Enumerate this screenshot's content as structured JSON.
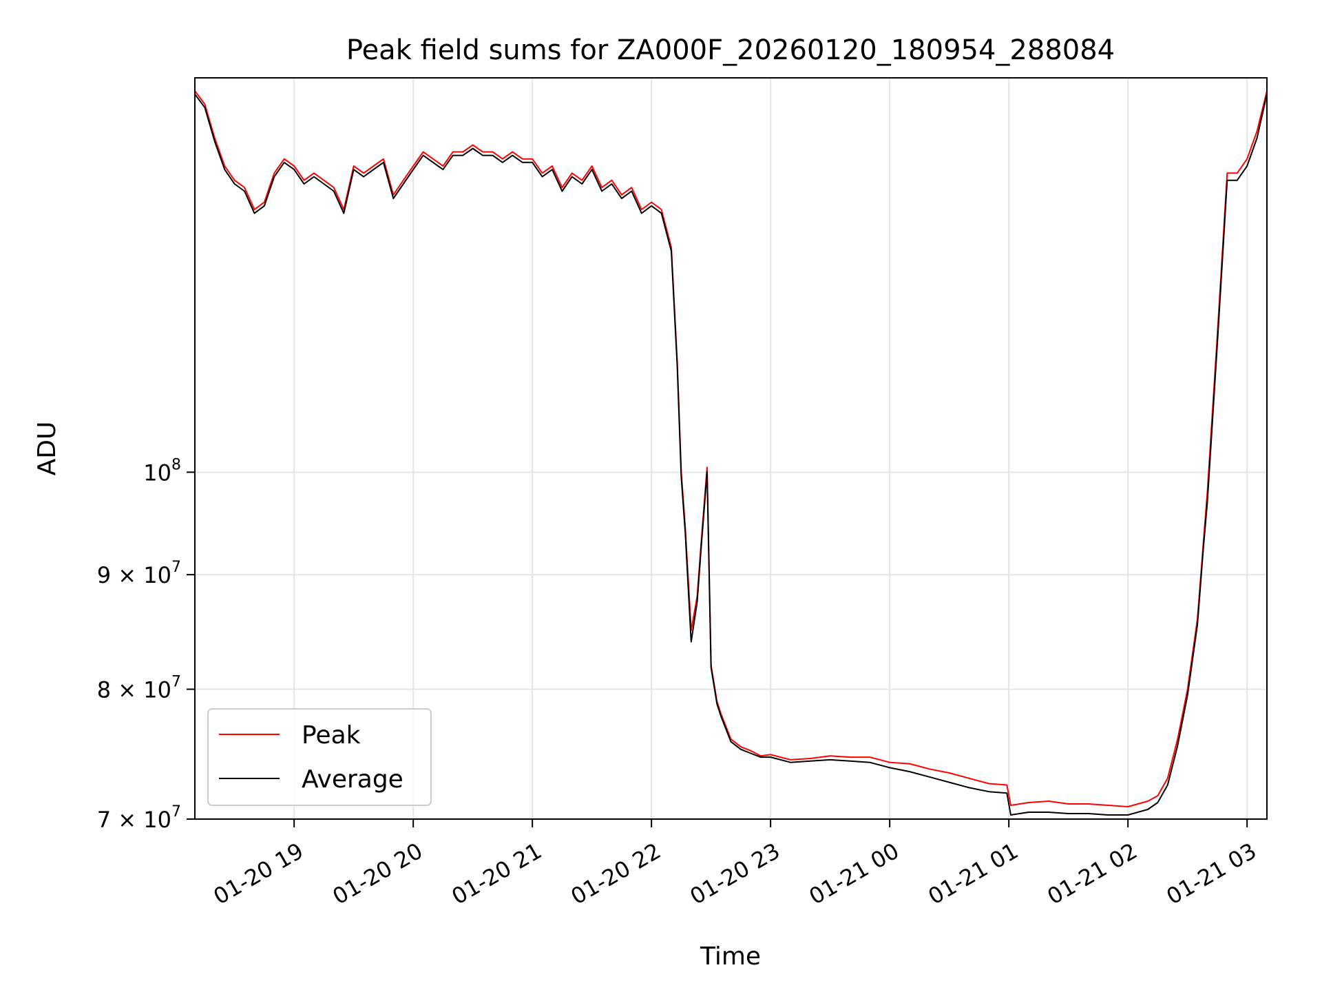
{
  "chart_data": {
    "type": "line",
    "title": "Peak field sums for ZA000F_20260120_180954_288084",
    "xlabel": "Time",
    "ylabel": "ADU",
    "yscale": "log",
    "ylim": [
      70000000,
      150000000
    ],
    "xlim": [
      "2026-01-20 18:10",
      "2026-01-21 03:10"
    ],
    "grid": true,
    "legend_position": "lower left",
    "colors": {
      "Peak": "#ff0000",
      "Average": "#000000"
    },
    "x_ticks": [
      {
        "value": "2026-01-20 19:00",
        "label": "01-20 19"
      },
      {
        "value": "2026-01-20 20:00",
        "label": "01-20 20"
      },
      {
        "value": "2026-01-20 21:00",
        "label": "01-20 21"
      },
      {
        "value": "2026-01-20 22:00",
        "label": "01-20 22"
      },
      {
        "value": "2026-01-20 23:00",
        "label": "01-20 23"
      },
      {
        "value": "2026-01-21 00:00",
        "label": "01-21 00"
      },
      {
        "value": "2026-01-21 01:00",
        "label": "01-21 01"
      },
      {
        "value": "2026-01-21 02:00",
        "label": "01-21 02"
      },
      {
        "value": "2026-01-21 03:00",
        "label": "01-21 03"
      }
    ],
    "y_ticks": [
      {
        "value": 70000000,
        "base": "7 × 10",
        "exp": "7"
      },
      {
        "value": 80000000,
        "base": "8 × 10",
        "exp": "7"
      },
      {
        "value": 90000000,
        "base": "9 × 10",
        "exp": "7"
      },
      {
        "value": 100000000,
        "base": "10",
        "exp": "8"
      }
    ],
    "series": [
      {
        "name": "Peak",
        "x": [
          "2026-01-20 18:10",
          "2026-01-20 18:15",
          "2026-01-20 18:20",
          "2026-01-20 18:25",
          "2026-01-20 18:30",
          "2026-01-20 18:35",
          "2026-01-20 18:40",
          "2026-01-20 18:45",
          "2026-01-20 18:50",
          "2026-01-20 18:55",
          "2026-01-20 19:00",
          "2026-01-20 19:05",
          "2026-01-20 19:10",
          "2026-01-20 19:15",
          "2026-01-20 19:20",
          "2026-01-20 19:25",
          "2026-01-20 19:30",
          "2026-01-20 19:35",
          "2026-01-20 19:40",
          "2026-01-20 19:45",
          "2026-01-20 19:50",
          "2026-01-20 19:55",
          "2026-01-20 20:00",
          "2026-01-20 20:05",
          "2026-01-20 20:10",
          "2026-01-20 20:15",
          "2026-01-20 20:20",
          "2026-01-20 20:25",
          "2026-01-20 20:30",
          "2026-01-20 20:35",
          "2026-01-20 20:40",
          "2026-01-20 20:45",
          "2026-01-20 20:50",
          "2026-01-20 20:55",
          "2026-01-20 21:00",
          "2026-01-20 21:05",
          "2026-01-20 21:10",
          "2026-01-20 21:15",
          "2026-01-20 21:20",
          "2026-01-20 21:25",
          "2026-01-20 21:30",
          "2026-01-20 21:35",
          "2026-01-20 21:40",
          "2026-01-20 21:45",
          "2026-01-20 21:50",
          "2026-01-20 21:55",
          "2026-01-20 22:00",
          "2026-01-20 22:05",
          "2026-01-20 22:10",
          "2026-01-20 22:13",
          "2026-01-20 22:15",
          "2026-01-20 22:17",
          "2026-01-20 22:20",
          "2026-01-20 22:23",
          "2026-01-20 22:25",
          "2026-01-20 22:28",
          "2026-01-20 22:30",
          "2026-01-20 22:33",
          "2026-01-20 22:35",
          "2026-01-20 22:40",
          "2026-01-20 22:45",
          "2026-01-20 22:50",
          "2026-01-20 22:55",
          "2026-01-20 23:00",
          "2026-01-20 23:10",
          "2026-01-20 23:20",
          "2026-01-20 23:30",
          "2026-01-20 23:40",
          "2026-01-20 23:50",
          "2026-01-21 00:00",
          "2026-01-21 00:10",
          "2026-01-21 00:20",
          "2026-01-21 00:30",
          "2026-01-21 00:40",
          "2026-01-21 00:50",
          "2026-01-21 00:59",
          "2026-01-21 01:01",
          "2026-01-21 01:10",
          "2026-01-21 01:20",
          "2026-01-21 01:30",
          "2026-01-21 01:40",
          "2026-01-21 01:50",
          "2026-01-21 02:00",
          "2026-01-21 02:10",
          "2026-01-21 02:15",
          "2026-01-21 02:20",
          "2026-01-21 02:25",
          "2026-01-21 02:30",
          "2026-01-21 02:35",
          "2026-01-21 02:38",
          "2026-01-21 02:40",
          "2026-01-21 02:45",
          "2026-01-21 02:50",
          "2026-01-21 02:55",
          "2026-01-21 03:00",
          "2026-01-21 03:05",
          "2026-01-21 03:10"
        ],
        "values": [
          148000000,
          146000000,
          141000000,
          137000000,
          135000000,
          134000000,
          131000000,
          132000000,
          136000000,
          138000000,
          137000000,
          135000000,
          136000000,
          135000000,
          134000000,
          131000000,
          137000000,
          136000000,
          137000000,
          138000000,
          133000000,
          135000000,
          137000000,
          139000000,
          138000000,
          137000000,
          139000000,
          139000000,
          140000000,
          139000000,
          139000000,
          138000000,
          139000000,
          138000000,
          138000000,
          136000000,
          137000000,
          134000000,
          136000000,
          135000000,
          137000000,
          134000000,
          135000000,
          133000000,
          134000000,
          131000000,
          132000000,
          131000000,
          126000000,
          112000000,
          100000000,
          94500000,
          85000000,
          88000000,
          93000000,
          100500000,
          82000000,
          79000000,
          78000000,
          76000000,
          75400000,
          75100000,
          74700000,
          74800000,
          74400000,
          74500000,
          74700000,
          74600000,
          74600000,
          74200000,
          74100000,
          73700000,
          73400000,
          73000000,
          72600000,
          72500000,
          71000000,
          71200000,
          71300000,
          71100000,
          71100000,
          71000000,
          70900000,
          71300000,
          71700000,
          73000000,
          76000000,
          80000000,
          86000000,
          93000000,
          98000000,
          115000000,
          136000000,
          136000000,
          138000000,
          142000000,
          148000000
        ]
      },
      {
        "name": "Average",
        "x": [
          "2026-01-20 18:10",
          "2026-01-20 18:15",
          "2026-01-20 18:20",
          "2026-01-20 18:25",
          "2026-01-20 18:30",
          "2026-01-20 18:35",
          "2026-01-20 18:40",
          "2026-01-20 18:45",
          "2026-01-20 18:50",
          "2026-01-20 18:55",
          "2026-01-20 19:00",
          "2026-01-20 19:05",
          "2026-01-20 19:10",
          "2026-01-20 19:15",
          "2026-01-20 19:20",
          "2026-01-20 19:25",
          "2026-01-20 19:30",
          "2026-01-20 19:35",
          "2026-01-20 19:40",
          "2026-01-20 19:45",
          "2026-01-20 19:50",
          "2026-01-20 19:55",
          "2026-01-20 20:00",
          "2026-01-20 20:05",
          "2026-01-20 20:10",
          "2026-01-20 20:15",
          "2026-01-20 20:20",
          "2026-01-20 20:25",
          "2026-01-20 20:30",
          "2026-01-20 20:35",
          "2026-01-20 20:40",
          "2026-01-20 20:45",
          "2026-01-20 20:50",
          "2026-01-20 20:55",
          "2026-01-20 21:00",
          "2026-01-20 21:05",
          "2026-01-20 21:10",
          "2026-01-20 21:15",
          "2026-01-20 21:20",
          "2026-01-20 21:25",
          "2026-01-20 21:30",
          "2026-01-20 21:35",
          "2026-01-20 21:40",
          "2026-01-20 21:45",
          "2026-01-20 21:50",
          "2026-01-20 21:55",
          "2026-01-20 22:00",
          "2026-01-20 22:05",
          "2026-01-20 22:10",
          "2026-01-20 22:13",
          "2026-01-20 22:15",
          "2026-01-20 22:17",
          "2026-01-20 22:20",
          "2026-01-20 22:23",
          "2026-01-20 22:25",
          "2026-01-20 22:28",
          "2026-01-20 22:30",
          "2026-01-20 22:33",
          "2026-01-20 22:35",
          "2026-01-20 22:40",
          "2026-01-20 22:45",
          "2026-01-20 22:50",
          "2026-01-20 22:55",
          "2026-01-20 23:00",
          "2026-01-20 23:10",
          "2026-01-20 23:20",
          "2026-01-20 23:30",
          "2026-01-20 23:40",
          "2026-01-20 23:50",
          "2026-01-21 00:00",
          "2026-01-21 00:10",
          "2026-01-21 00:20",
          "2026-01-21 00:30",
          "2026-01-21 00:40",
          "2026-01-21 00:50",
          "2026-01-21 00:59",
          "2026-01-21 01:01",
          "2026-01-21 01:10",
          "2026-01-21 01:20",
          "2026-01-21 01:30",
          "2026-01-21 01:40",
          "2026-01-21 01:50",
          "2026-01-21 02:00",
          "2026-01-21 02:10",
          "2026-01-21 02:15",
          "2026-01-21 02:20",
          "2026-01-21 02:25",
          "2026-01-21 02:30",
          "2026-01-21 02:35",
          "2026-01-21 02:38",
          "2026-01-21 02:40",
          "2026-01-21 02:45",
          "2026-01-21 02:50",
          "2026-01-21 02:55",
          "2026-01-21 03:00",
          "2026-01-21 03:05",
          "2026-01-21 03:10"
        ],
        "values": [
          147500000,
          145500000,
          140500000,
          136500000,
          134500000,
          133500000,
          130500000,
          131500000,
          135500000,
          137500000,
          136500000,
          134500000,
          135500000,
          134500000,
          133500000,
          130500000,
          136500000,
          135500000,
          136500000,
          137500000,
          132500000,
          134500000,
          136500000,
          138500000,
          137500000,
          136500000,
          138500000,
          138500000,
          139500000,
          138500000,
          138500000,
          137500000,
          138500000,
          137500000,
          137500000,
          135500000,
          136500000,
          133500000,
          135500000,
          134500000,
          136500000,
          133500000,
          134500000,
          132500000,
          133500000,
          130500000,
          131500000,
          130500000,
          125500000,
          111500000,
          99500000,
          94000000,
          84000000,
          87500000,
          92500000,
          100000000,
          81800000,
          78800000,
          77800000,
          75800000,
          75200000,
          74900000,
          74600000,
          74600000,
          74200000,
          74300000,
          74400000,
          74300000,
          74200000,
          73800000,
          73500000,
          73100000,
          72700000,
          72300000,
          72000000,
          71900000,
          70300000,
          70500000,
          70500000,
          70400000,
          70400000,
          70300000,
          70300000,
          70700000,
          71200000,
          72500000,
          75500000,
          79500000,
          85500000,
          92500000,
          97000000,
          114000000,
          135000000,
          135000000,
          137000000,
          141000000,
          147500000
        ]
      }
    ]
  }
}
